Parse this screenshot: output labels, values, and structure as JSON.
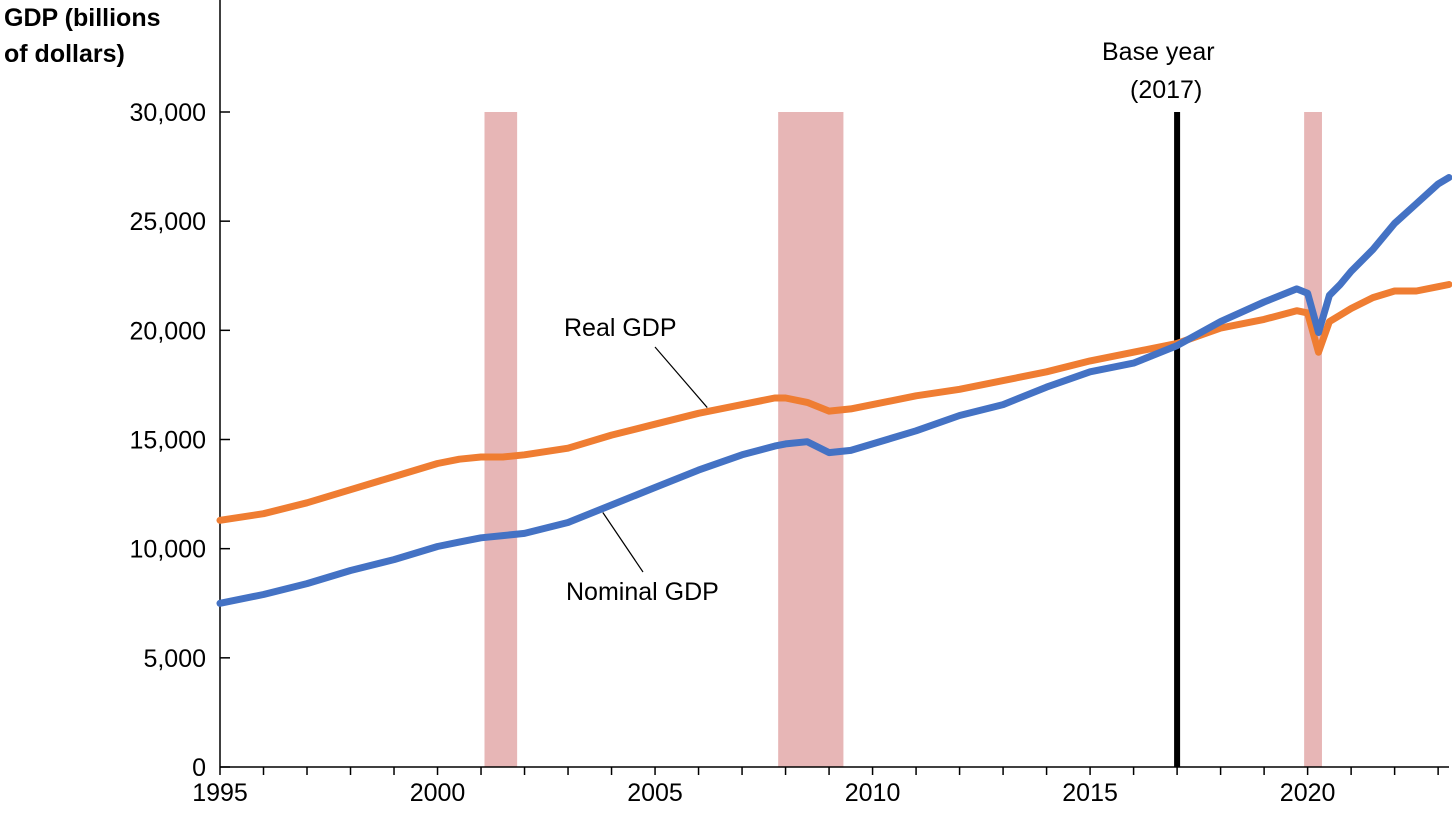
{
  "chart_data": {
    "type": "line",
    "ylabel_lines": [
      "GDP (billions",
      "of dollars)"
    ],
    "xlim": [
      1995,
      2023.25
    ],
    "ylim": [
      0,
      30000
    ],
    "x_ticks": [
      1995,
      2000,
      2005,
      2010,
      2015,
      2020
    ],
    "y_ticks": [
      0,
      5000,
      10000,
      15000,
      20000,
      25000,
      30000
    ],
    "y_tick_labels": [
      "0",
      "5,000",
      "10,000",
      "15,000",
      "20,000",
      "25,000",
      "30,000"
    ],
    "recessions": [
      {
        "start": 2001.08,
        "end": 2001.83
      },
      {
        "start": 2007.83,
        "end": 2009.33
      },
      {
        "start": 2019.92,
        "end": 2020.33
      }
    ],
    "recession_color": "#e7b6b6",
    "base_year": {
      "x": 2017,
      "label_lines": [
        "Base year",
        "(2017)"
      ]
    },
    "series": [
      {
        "name": "Real GDP",
        "color": "#ef7d32",
        "x": [
          1995,
          1996,
          1997,
          1998,
          1999,
          2000,
          2000.5,
          2001,
          2001.5,
          2002,
          2003,
          2004,
          2005,
          2006,
          2007,
          2007.75,
          2008,
          2008.5,
          2009,
          2009.5,
          2010,
          2011,
          2012,
          2013,
          2014,
          2015,
          2016,
          2017,
          2018,
          2019,
          2019.75,
          2020,
          2020.25,
          2020.5,
          2020.75,
          2021,
          2021.5,
          2022,
          2022.5,
          2023,
          2023.25
        ],
        "values": [
          11300,
          11600,
          12100,
          12700,
          13300,
          13900,
          14100,
          14200,
          14200,
          14300,
          14600,
          15200,
          15700,
          16200,
          16600,
          16900,
          16900,
          16700,
          16300,
          16400,
          16600,
          17000,
          17300,
          17700,
          18100,
          18600,
          19000,
          19400,
          20100,
          20500,
          20900,
          20800,
          19000,
          20400,
          20700,
          21000,
          21500,
          21800,
          21800,
          22000,
          22100
        ]
      },
      {
        "name": "Nominal GDP",
        "color": "#4472c4",
        "x": [
          1995,
          1996,
          1997,
          1998,
          1999,
          2000,
          2000.5,
          2001,
          2001.5,
          2002,
          2003,
          2004,
          2005,
          2006,
          2007,
          2007.75,
          2008,
          2008.5,
          2009,
          2009.5,
          2010,
          2011,
          2012,
          2013,
          2014,
          2015,
          2016,
          2017,
          2018,
          2019,
          2019.75,
          2020,
          2020.25,
          2020.5,
          2020.75,
          2021,
          2021.5,
          2022,
          2022.5,
          2023,
          2023.25
        ],
        "values": [
          7500,
          7900,
          8400,
          9000,
          9500,
          10100,
          10300,
          10500,
          10600,
          10700,
          11200,
          12000,
          12800,
          13600,
          14300,
          14700,
          14800,
          14900,
          14400,
          14500,
          14800,
          15400,
          16100,
          16600,
          17400,
          18100,
          18500,
          19300,
          20400,
          21300,
          21900,
          21700,
          19900,
          21600,
          22100,
          22700,
          23700,
          24900,
          25800,
          26700,
          27000
        ]
      }
    ],
    "annotations": [
      {
        "text": "Real GDP",
        "series": "Real GDP"
      },
      {
        "text": "Nominal GDP",
        "series": "Nominal GDP"
      }
    ]
  }
}
